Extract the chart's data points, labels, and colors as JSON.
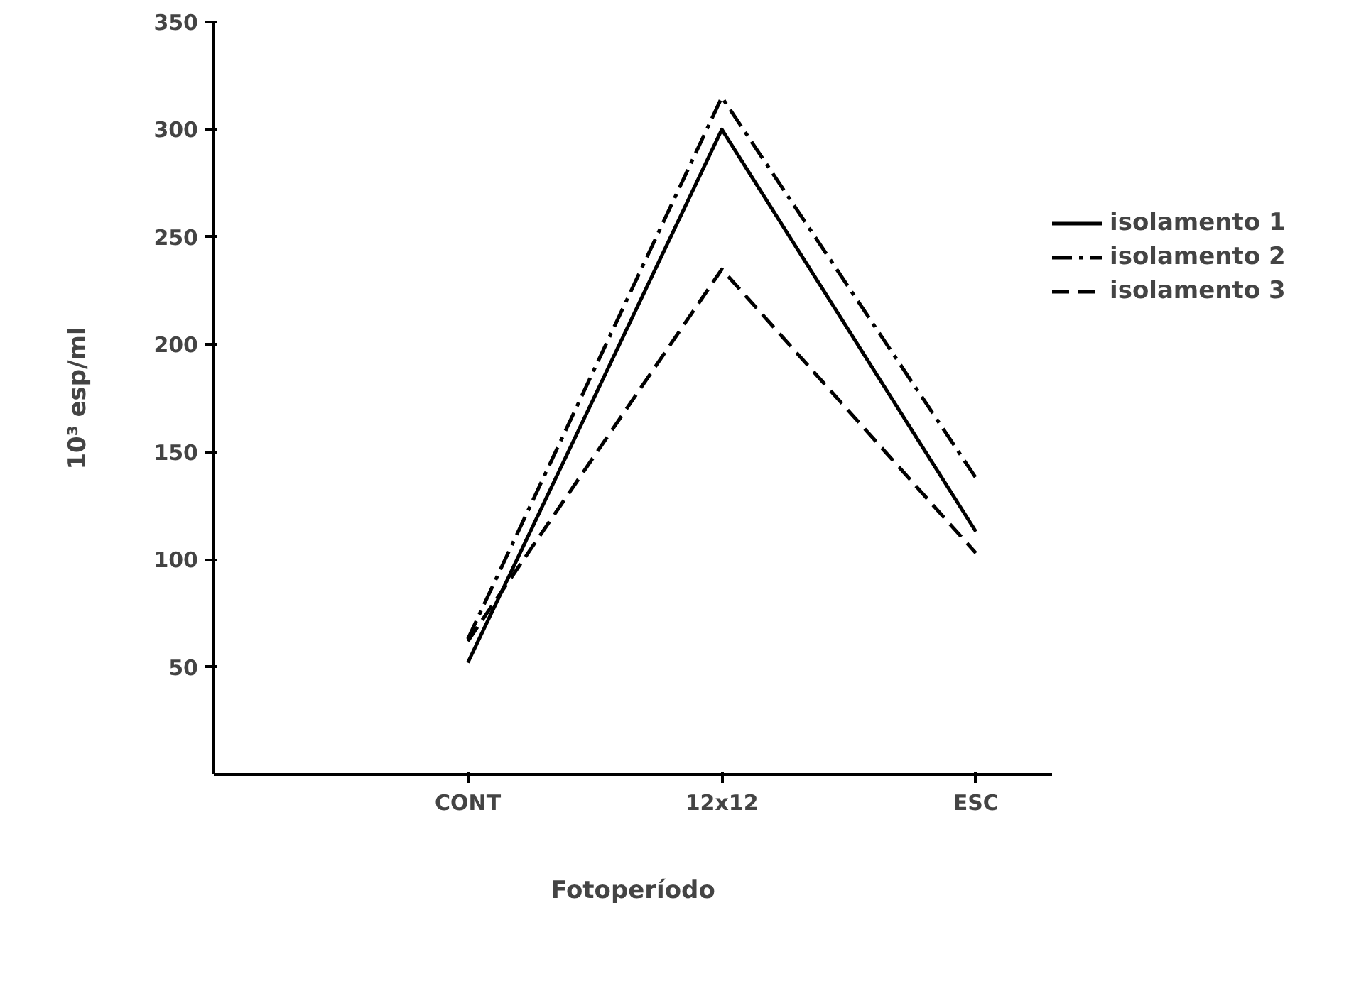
{
  "chart_data": {
    "type": "line",
    "xlabel": "Fotoperíodo",
    "ylabel": "10³ esp/ml",
    "categories": [
      "CONT",
      "12x12",
      "ESC"
    ],
    "series": [
      {
        "name": "isolamento 1",
        "color": "#000000",
        "line_style": "solid",
        "values": [
          52,
          300,
          113
        ]
      },
      {
        "name": "isolamento 2",
        "color": "#000000",
        "line_style": "dashdot",
        "values": [
          63,
          315,
          138
        ]
      },
      {
        "name": "isolamento 3",
        "color": "#000000",
        "line_style": "dashed",
        "values": [
          62,
          235,
          103
        ]
      }
    ],
    "ylim": [
      0,
      350
    ],
    "yticks": [
      50,
      100,
      150,
      200,
      250,
      300,
      350
    ],
    "grid": false,
    "legend": "right",
    "marker": "none"
  }
}
